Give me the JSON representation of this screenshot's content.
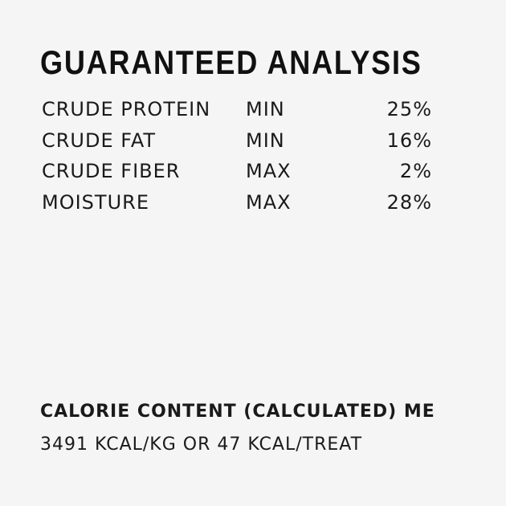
{
  "title": "GUARANTEED ANALYSIS",
  "rows": [
    {
      "nutrient": "CRUDE PROTEIN",
      "qualifier": "MIN",
      "value": "25%"
    },
    {
      "nutrient": "CRUDE FAT",
      "qualifier": "MIN",
      "value": "16%"
    },
    {
      "nutrient": "CRUDE FIBER",
      "qualifier": "MAX",
      "value": "2%"
    },
    {
      "nutrient": "MOISTURE",
      "qualifier": "MAX",
      "value": "28%"
    }
  ],
  "calorie": {
    "heading": "CALORIE CONTENT (CALCULATED) ME",
    "value": "3491 KCAL/KG OR 47 KCAL/TREAT"
  }
}
